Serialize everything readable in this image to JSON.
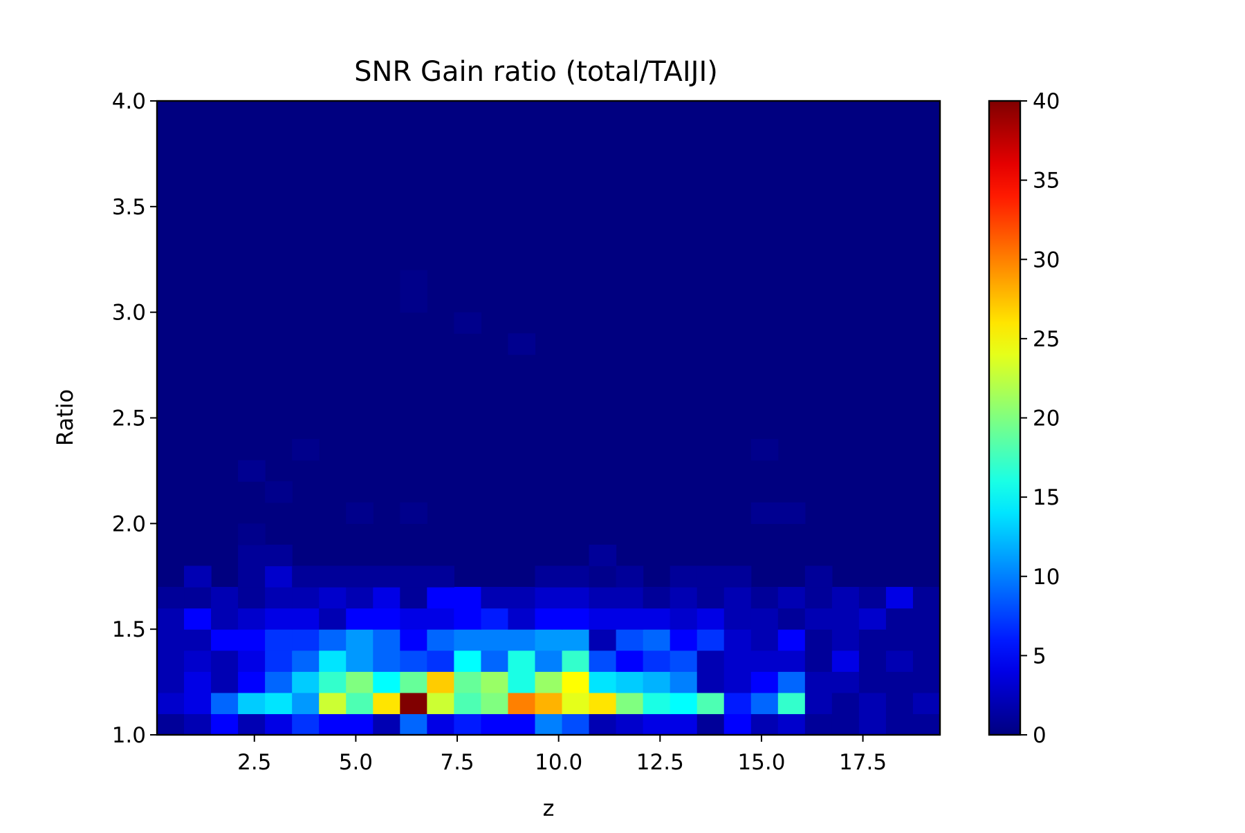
{
  "chart_data": {
    "type": "heatmap",
    "title": "SNR Gain ratio (total/TAIJI)",
    "xlabel": "z",
    "ylabel": "Ratio",
    "xlim": [
      0.1,
      19.4
    ],
    "ylim": [
      1.0,
      4.0
    ],
    "x_ticks": [
      "2.5",
      "5.0",
      "7.5",
      "10.0",
      "12.5",
      "15.0",
      "17.5"
    ],
    "x_tick_values": [
      2.5,
      5.0,
      7.5,
      10.0,
      12.5,
      15.0,
      17.5
    ],
    "y_ticks": [
      "1.0",
      "1.5",
      "2.0",
      "2.5",
      "3.0",
      "3.5",
      "4.0"
    ],
    "y_tick_values": [
      1.0,
      1.5,
      2.0,
      2.5,
      3.0,
      3.5,
      4.0
    ],
    "colormap": "jet",
    "colorbar": {
      "min": 0,
      "max": 40,
      "ticks": [
        "0",
        "5",
        "10",
        "15",
        "20",
        "25",
        "30",
        "35",
        "40"
      ],
      "tick_values": [
        0,
        5,
        10,
        15,
        20,
        25,
        30,
        35,
        40
      ]
    },
    "x_bins": 29,
    "y_bins": 30,
    "background_value": 0,
    "cells": [
      {
        "ix": 0,
        "iy": 0,
        "v": 1
      },
      {
        "ix": 1,
        "iy": 0,
        "v": 2
      },
      {
        "ix": 2,
        "iy": 0,
        "v": 5
      },
      {
        "ix": 3,
        "iy": 0,
        "v": 2
      },
      {
        "ix": 4,
        "iy": 0,
        "v": 4
      },
      {
        "ix": 5,
        "iy": 0,
        "v": 7
      },
      {
        "ix": 6,
        "iy": 0,
        "v": 5
      },
      {
        "ix": 7,
        "iy": 0,
        "v": 5
      },
      {
        "ix": 8,
        "iy": 0,
        "v": 2
      },
      {
        "ix": 9,
        "iy": 0,
        "v": 9
      },
      {
        "ix": 10,
        "iy": 0,
        "v": 4
      },
      {
        "ix": 11,
        "iy": 0,
        "v": 6
      },
      {
        "ix": 12,
        "iy": 0,
        "v": 5
      },
      {
        "ix": 13,
        "iy": 0,
        "v": 5
      },
      {
        "ix": 14,
        "iy": 0,
        "v": 10
      },
      {
        "ix": 15,
        "iy": 0,
        "v": 8
      },
      {
        "ix": 16,
        "iy": 0,
        "v": 2
      },
      {
        "ix": 17,
        "iy": 0,
        "v": 3
      },
      {
        "ix": 18,
        "iy": 0,
        "v": 4
      },
      {
        "ix": 19,
        "iy": 0,
        "v": 4
      },
      {
        "ix": 20,
        "iy": 0,
        "v": 1
      },
      {
        "ix": 21,
        "iy": 0,
        "v": 5
      },
      {
        "ix": 22,
        "iy": 0,
        "v": 2
      },
      {
        "ix": 23,
        "iy": 0,
        "v": 3
      },
      {
        "ix": 24,
        "iy": 0,
        "v": 1
      },
      {
        "ix": 25,
        "iy": 0,
        "v": 1
      },
      {
        "ix": 26,
        "iy": 0,
        "v": 2
      },
      {
        "ix": 27,
        "iy": 0,
        "v": 1
      },
      {
        "ix": 28,
        "iy": 0,
        "v": 1
      },
      {
        "ix": 0,
        "iy": 1,
        "v": 3
      },
      {
        "ix": 1,
        "iy": 1,
        "v": 4
      },
      {
        "ix": 2,
        "iy": 1,
        "v": 9
      },
      {
        "ix": 3,
        "iy": 1,
        "v": 13
      },
      {
        "ix": 4,
        "iy": 1,
        "v": 14
      },
      {
        "ix": 5,
        "iy": 1,
        "v": 11
      },
      {
        "ix": 6,
        "iy": 1,
        "v": 23
      },
      {
        "ix": 7,
        "iy": 1,
        "v": 18
      },
      {
        "ix": 8,
        "iy": 1,
        "v": 26
      },
      {
        "ix": 9,
        "iy": 1,
        "v": 40
      },
      {
        "ix": 10,
        "iy": 1,
        "v": 23
      },
      {
        "ix": 11,
        "iy": 1,
        "v": 18
      },
      {
        "ix": 12,
        "iy": 1,
        "v": 20
      },
      {
        "ix": 13,
        "iy": 1,
        "v": 30
      },
      {
        "ix": 14,
        "iy": 1,
        "v": 28
      },
      {
        "ix": 15,
        "iy": 1,
        "v": 24
      },
      {
        "ix": 16,
        "iy": 1,
        "v": 26
      },
      {
        "ix": 17,
        "iy": 1,
        "v": 20
      },
      {
        "ix": 18,
        "iy": 1,
        "v": 16
      },
      {
        "ix": 19,
        "iy": 1,
        "v": 15
      },
      {
        "ix": 20,
        "iy": 1,
        "v": 18
      },
      {
        "ix": 21,
        "iy": 1,
        "v": 6
      },
      {
        "ix": 22,
        "iy": 1,
        "v": 9
      },
      {
        "ix": 23,
        "iy": 1,
        "v": 17
      },
      {
        "ix": 24,
        "iy": 1,
        "v": 2
      },
      {
        "ix": 25,
        "iy": 1,
        "v": 1
      },
      {
        "ix": 26,
        "iy": 1,
        "v": 2
      },
      {
        "ix": 27,
        "iy": 1,
        "v": 1
      },
      {
        "ix": 28,
        "iy": 1,
        "v": 2
      },
      {
        "ix": 0,
        "iy": 2,
        "v": 2
      },
      {
        "ix": 1,
        "iy": 2,
        "v": 4
      },
      {
        "ix": 2,
        "iy": 2,
        "v": 2
      },
      {
        "ix": 3,
        "iy": 2,
        "v": 5
      },
      {
        "ix": 4,
        "iy": 2,
        "v": 9
      },
      {
        "ix": 5,
        "iy": 2,
        "v": 13
      },
      {
        "ix": 6,
        "iy": 2,
        "v": 17
      },
      {
        "ix": 7,
        "iy": 2,
        "v": 20
      },
      {
        "ix": 8,
        "iy": 2,
        "v": 15
      },
      {
        "ix": 9,
        "iy": 2,
        "v": 19
      },
      {
        "ix": 10,
        "iy": 2,
        "v": 27
      },
      {
        "ix": 11,
        "iy": 2,
        "v": 19
      },
      {
        "ix": 12,
        "iy": 2,
        "v": 21
      },
      {
        "ix": 13,
        "iy": 2,
        "v": 16
      },
      {
        "ix": 14,
        "iy": 2,
        "v": 21
      },
      {
        "ix": 15,
        "iy": 2,
        "v": 25
      },
      {
        "ix": 16,
        "iy": 2,
        "v": 14
      },
      {
        "ix": 17,
        "iy": 2,
        "v": 13
      },
      {
        "ix": 18,
        "iy": 2,
        "v": 12
      },
      {
        "ix": 19,
        "iy": 2,
        "v": 10
      },
      {
        "ix": 20,
        "iy": 2,
        "v": 2
      },
      {
        "ix": 21,
        "iy": 2,
        "v": 3
      },
      {
        "ix": 22,
        "iy": 2,
        "v": 5
      },
      {
        "ix": 23,
        "iy": 2,
        "v": 9
      },
      {
        "ix": 24,
        "iy": 2,
        "v": 2
      },
      {
        "ix": 25,
        "iy": 2,
        "v": 2
      },
      {
        "ix": 26,
        "iy": 2,
        "v": 1
      },
      {
        "ix": 27,
        "iy": 2,
        "v": 1
      },
      {
        "ix": 28,
        "iy": 2,
        "v": 1
      },
      {
        "ix": 0,
        "iy": 3,
        "v": 2
      },
      {
        "ix": 1,
        "iy": 3,
        "v": 3
      },
      {
        "ix": 2,
        "iy": 3,
        "v": 2
      },
      {
        "ix": 3,
        "iy": 3,
        "v": 4
      },
      {
        "ix": 4,
        "iy": 3,
        "v": 7
      },
      {
        "ix": 5,
        "iy": 3,
        "v": 9
      },
      {
        "ix": 6,
        "iy": 3,
        "v": 14
      },
      {
        "ix": 7,
        "iy": 3,
        "v": 11
      },
      {
        "ix": 8,
        "iy": 3,
        "v": 9
      },
      {
        "ix": 9,
        "iy": 3,
        "v": 8
      },
      {
        "ix": 10,
        "iy": 3,
        "v": 7
      },
      {
        "ix": 11,
        "iy": 3,
        "v": 15
      },
      {
        "ix": 12,
        "iy": 3,
        "v": 9
      },
      {
        "ix": 13,
        "iy": 3,
        "v": 16
      },
      {
        "ix": 14,
        "iy": 3,
        "v": 10
      },
      {
        "ix": 15,
        "iy": 3,
        "v": 17
      },
      {
        "ix": 16,
        "iy": 3,
        "v": 8
      },
      {
        "ix": 17,
        "iy": 3,
        "v": 5
      },
      {
        "ix": 18,
        "iy": 3,
        "v": 7
      },
      {
        "ix": 19,
        "iy": 3,
        "v": 8
      },
      {
        "ix": 20,
        "iy": 3,
        "v": 2
      },
      {
        "ix": 21,
        "iy": 3,
        "v": 3
      },
      {
        "ix": 22,
        "iy": 3,
        "v": 3
      },
      {
        "ix": 23,
        "iy": 3,
        "v": 3
      },
      {
        "ix": 24,
        "iy": 3,
        "v": 1
      },
      {
        "ix": 25,
        "iy": 3,
        "v": 4
      },
      {
        "ix": 26,
        "iy": 3,
        "v": 1
      },
      {
        "ix": 27,
        "iy": 3,
        "v": 2
      },
      {
        "ix": 28,
        "iy": 3,
        "v": 1
      },
      {
        "ix": 0,
        "iy": 4,
        "v": 2
      },
      {
        "ix": 1,
        "iy": 4,
        "v": 2
      },
      {
        "ix": 2,
        "iy": 4,
        "v": 5
      },
      {
        "ix": 3,
        "iy": 4,
        "v": 5
      },
      {
        "ix": 4,
        "iy": 4,
        "v": 7
      },
      {
        "ix": 5,
        "iy": 4,
        "v": 7
      },
      {
        "ix": 6,
        "iy": 4,
        "v": 9
      },
      {
        "ix": 7,
        "iy": 4,
        "v": 11
      },
      {
        "ix": 8,
        "iy": 4,
        "v": 9
      },
      {
        "ix": 9,
        "iy": 4,
        "v": 5
      },
      {
        "ix": 10,
        "iy": 4,
        "v": 9
      },
      {
        "ix": 11,
        "iy": 4,
        "v": 10
      },
      {
        "ix": 12,
        "iy": 4,
        "v": 10
      },
      {
        "ix": 13,
        "iy": 4,
        "v": 10
      },
      {
        "ix": 14,
        "iy": 4,
        "v": 11
      },
      {
        "ix": 15,
        "iy": 4,
        "v": 11
      },
      {
        "ix": 16,
        "iy": 4,
        "v": 2
      },
      {
        "ix": 17,
        "iy": 4,
        "v": 8
      },
      {
        "ix": 18,
        "iy": 4,
        "v": 9
      },
      {
        "ix": 19,
        "iy": 4,
        "v": 5
      },
      {
        "ix": 20,
        "iy": 4,
        "v": 7
      },
      {
        "ix": 21,
        "iy": 4,
        "v": 3
      },
      {
        "ix": 22,
        "iy": 4,
        "v": 2
      },
      {
        "ix": 23,
        "iy": 4,
        "v": 5
      },
      {
        "ix": 24,
        "iy": 4,
        "v": 1
      },
      {
        "ix": 25,
        "iy": 4,
        "v": 2
      },
      {
        "ix": 26,
        "iy": 4,
        "v": 1
      },
      {
        "ix": 27,
        "iy": 4,
        "v": 1
      },
      {
        "ix": 28,
        "iy": 4,
        "v": 1
      },
      {
        "ix": 0,
        "iy": 5,
        "v": 2
      },
      {
        "ix": 1,
        "iy": 5,
        "v": 5
      },
      {
        "ix": 2,
        "iy": 5,
        "v": 2
      },
      {
        "ix": 3,
        "iy": 5,
        "v": 3
      },
      {
        "ix": 4,
        "iy": 5,
        "v": 4
      },
      {
        "ix": 5,
        "iy": 5,
        "v": 4
      },
      {
        "ix": 6,
        "iy": 5,
        "v": 2
      },
      {
        "ix": 7,
        "iy": 5,
        "v": 5
      },
      {
        "ix": 8,
        "iy": 5,
        "v": 5
      },
      {
        "ix": 9,
        "iy": 5,
        "v": 4
      },
      {
        "ix": 10,
        "iy": 5,
        "v": 4
      },
      {
        "ix": 11,
        "iy": 5,
        "v": 5
      },
      {
        "ix": 12,
        "iy": 5,
        "v": 6
      },
      {
        "ix": 13,
        "iy": 5,
        "v": 3
      },
      {
        "ix": 14,
        "iy": 5,
        "v": 5
      },
      {
        "ix": 15,
        "iy": 5,
        "v": 5
      },
      {
        "ix": 16,
        "iy": 5,
        "v": 4
      },
      {
        "ix": 17,
        "iy": 5,
        "v": 4
      },
      {
        "ix": 18,
        "iy": 5,
        "v": 4
      },
      {
        "ix": 19,
        "iy": 5,
        "v": 3
      },
      {
        "ix": 20,
        "iy": 5,
        "v": 4
      },
      {
        "ix": 21,
        "iy": 5,
        "v": 2
      },
      {
        "ix": 22,
        "iy": 5,
        "v": 2
      },
      {
        "ix": 23,
        "iy": 5,
        "v": 1
      },
      {
        "ix": 24,
        "iy": 5,
        "v": 2
      },
      {
        "ix": 25,
        "iy": 5,
        "v": 2
      },
      {
        "ix": 26,
        "iy": 5,
        "v": 3
      },
      {
        "ix": 27,
        "iy": 5,
        "v": 1
      },
      {
        "ix": 28,
        "iy": 5,
        "v": 1
      },
      {
        "ix": 0,
        "iy": 6,
        "v": 1
      },
      {
        "ix": 1,
        "iy": 6,
        "v": 1
      },
      {
        "ix": 2,
        "iy": 6,
        "v": 2
      },
      {
        "ix": 3,
        "iy": 6,
        "v": 1
      },
      {
        "ix": 4,
        "iy": 6,
        "v": 2
      },
      {
        "ix": 5,
        "iy": 6,
        "v": 2
      },
      {
        "ix": 6,
        "iy": 6,
        "v": 3
      },
      {
        "ix": 7,
        "iy": 6,
        "v": 2
      },
      {
        "ix": 8,
        "iy": 6,
        "v": 4
      },
      {
        "ix": 9,
        "iy": 6,
        "v": 1
      },
      {
        "ix": 10,
        "iy": 6,
        "v": 5
      },
      {
        "ix": 11,
        "iy": 6,
        "v": 5
      },
      {
        "ix": 12,
        "iy": 6,
        "v": 2
      },
      {
        "ix": 13,
        "iy": 6,
        "v": 2
      },
      {
        "ix": 14,
        "iy": 6,
        "v": 3
      },
      {
        "ix": 15,
        "iy": 6,
        "v": 3
      },
      {
        "ix": 16,
        "iy": 6,
        "v": 2
      },
      {
        "ix": 17,
        "iy": 6,
        "v": 2
      },
      {
        "ix": 18,
        "iy": 6,
        "v": 1
      },
      {
        "ix": 19,
        "iy": 6,
        "v": 2
      },
      {
        "ix": 20,
        "iy": 6,
        "v": 1
      },
      {
        "ix": 21,
        "iy": 6,
        "v": 2
      },
      {
        "ix": 22,
        "iy": 6,
        "v": 1
      },
      {
        "ix": 23,
        "iy": 6,
        "v": 2
      },
      {
        "ix": 24,
        "iy": 6,
        "v": 1
      },
      {
        "ix": 25,
        "iy": 6,
        "v": 2
      },
      {
        "ix": 26,
        "iy": 6,
        "v": 1
      },
      {
        "ix": 27,
        "iy": 6,
        "v": 4
      },
      {
        "ix": 28,
        "iy": 6,
        "v": 1
      },
      {
        "ix": 1,
        "iy": 7,
        "v": 2
      },
      {
        "ix": 3,
        "iy": 7,
        "v": 1
      },
      {
        "ix": 4,
        "iy": 7,
        "v": 3
      },
      {
        "ix": 5,
        "iy": 7,
        "v": 1
      },
      {
        "ix": 6,
        "iy": 7,
        "v": 1
      },
      {
        "ix": 7,
        "iy": 7,
        "v": 1
      },
      {
        "ix": 8,
        "iy": 7,
        "v": 1
      },
      {
        "ix": 9,
        "iy": 7,
        "v": 1
      },
      {
        "ix": 10,
        "iy": 7,
        "v": 1
      },
      {
        "ix": 14,
        "iy": 7,
        "v": 1
      },
      {
        "ix": 15,
        "iy": 7,
        "v": 1
      },
      {
        "ix": 16,
        "iy": 7,
        "v": 0.5
      },
      {
        "ix": 17,
        "iy": 7,
        "v": 1
      },
      {
        "ix": 19,
        "iy": 7,
        "v": 1
      },
      {
        "ix": 20,
        "iy": 7,
        "v": 1
      },
      {
        "ix": 21,
        "iy": 7,
        "v": 1
      },
      {
        "ix": 24,
        "iy": 7,
        "v": 1
      },
      {
        "ix": 3,
        "iy": 8,
        "v": 1
      },
      {
        "ix": 4,
        "iy": 8,
        "v": 1
      },
      {
        "ix": 16,
        "iy": 8,
        "v": 1
      },
      {
        "ix": 3,
        "iy": 9,
        "v": 0.5
      },
      {
        "ix": 7,
        "iy": 10,
        "v": 0.5
      },
      {
        "ix": 9,
        "iy": 10,
        "v": 0.5
      },
      {
        "ix": 22,
        "iy": 10,
        "v": 0.7
      },
      {
        "ix": 23,
        "iy": 10,
        "v": 0.7
      },
      {
        "ix": 4,
        "iy": 11,
        "v": 0.5
      },
      {
        "ix": 3,
        "iy": 12,
        "v": 0.7
      },
      {
        "ix": 5,
        "iy": 13,
        "v": 0.5
      },
      {
        "ix": 22,
        "iy": 13,
        "v": 0.5
      },
      {
        "ix": 13,
        "iy": 18,
        "v": 0.6
      },
      {
        "ix": 11,
        "iy": 19,
        "v": 0.5
      },
      {
        "ix": 9,
        "iy": 20,
        "v": 0.4
      },
      {
        "ix": 9,
        "iy": 21,
        "v": 0.4
      }
    ]
  }
}
